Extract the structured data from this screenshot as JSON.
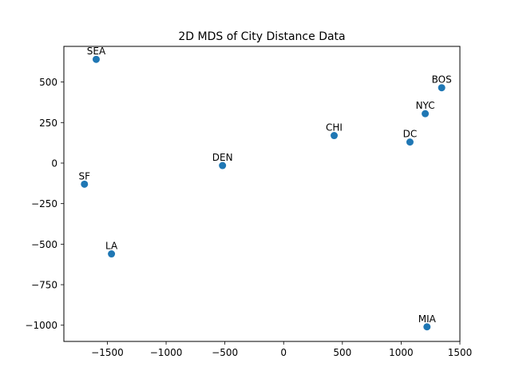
{
  "chart_data": {
    "type": "scatter",
    "title": "2D MDS of City Distance Data",
    "xlabel": "",
    "ylabel": "",
    "xlim": [
      -1870,
      1500
    ],
    "ylim": [
      -1100,
      720
    ],
    "xticks": [
      -1500,
      -1000,
      -500,
      0,
      500,
      1000,
      1500
    ],
    "xtick_labels": [
      "−1500",
      "−1000",
      "−500",
      "0",
      "500",
      "1000",
      "1500"
    ],
    "yticks": [
      500,
      250,
      0,
      -250,
      -500,
      -750,
      -1000
    ],
    "ytick_labels": [
      "500",
      "250",
      "0",
      "−250",
      "−500",
      "−750",
      "−1000"
    ],
    "grid": false,
    "marker_color": "#1f77b4",
    "points": [
      {
        "label": "SEA",
        "x": -1595,
        "y": 640
      },
      {
        "label": "SF",
        "x": -1695,
        "y": -130
      },
      {
        "label": "LA",
        "x": -1465,
        "y": -560
      },
      {
        "label": "DEN",
        "x": -520,
        "y": -15
      },
      {
        "label": "CHI",
        "x": 430,
        "y": 170
      },
      {
        "label": "DC",
        "x": 1075,
        "y": 130
      },
      {
        "label": "NYC",
        "x": 1205,
        "y": 305
      },
      {
        "label": "BOS",
        "x": 1345,
        "y": 465
      },
      {
        "label": "MIA",
        "x": 1220,
        "y": -1010
      }
    ]
  }
}
